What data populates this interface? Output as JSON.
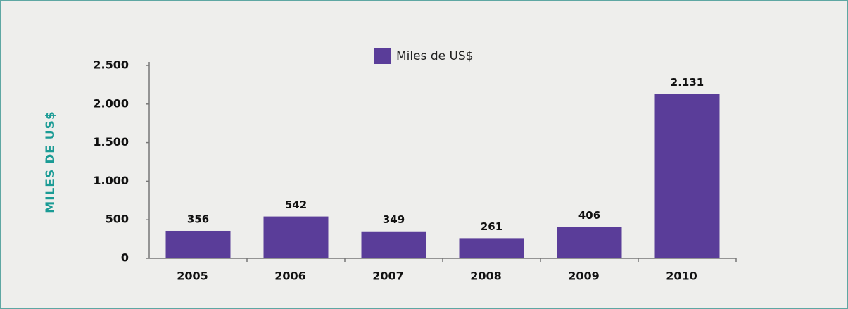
{
  "chart_data": {
    "type": "bar",
    "y_label": "MILES DE US$",
    "legend": "Miles de US$",
    "categories": [
      "2005",
      "2006",
      "2007",
      "2008",
      "2009",
      "2010"
    ],
    "values": [
      356,
      542,
      349,
      261,
      406,
      2131
    ],
    "value_labels": [
      "356",
      "542",
      "349",
      "261",
      "406",
      "2.131"
    ],
    "color": "#5a3d99",
    "ylim": [
      0,
      2500
    ],
    "yticks": [
      0,
      500,
      {
        "value": 1000,
        "label": "1.000"
      },
      {
        "value": 1500,
        "label": "1.500"
      },
      {
        "value": 2000,
        "label": "2.000"
      },
      {
        "value": 2500,
        "label": "2.500"
      }
    ],
    "grid": false
  }
}
